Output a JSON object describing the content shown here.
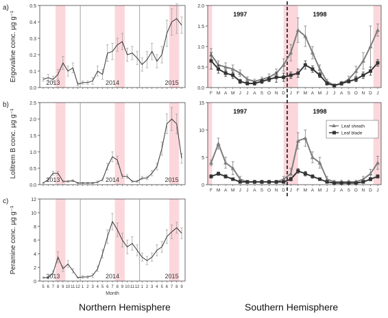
{
  "labels": {
    "north": "Northern Hemisphere",
    "south": "Southern Hemisphere",
    "month_axis": "Month"
  },
  "colors": {
    "band": "#fbd7dc",
    "line_dark": "#333333",
    "line_grey": "#7d7d7d",
    "error": "#9a9a9a"
  },
  "chart_data": [
    {
      "id": "a_north",
      "type": "line",
      "panel": "a)",
      "ylabel": "Ergovaline conc. µg g⁻¹",
      "ylim": [
        0,
        0.5
      ],
      "yticks": [
        "0.0",
        "0.1",
        "0.2",
        "0.3",
        "0.4",
        "0.5"
      ],
      "ytick_values": [
        0,
        0.1,
        0.2,
        0.3,
        0.4,
        0.5
      ],
      "x_labels": [
        "5",
        "6",
        "7",
        "8",
        "9",
        "10",
        "11",
        "12",
        "1",
        "2",
        "3",
        "4",
        "5",
        "6",
        "7",
        "8",
        "9",
        "10",
        "11",
        "12",
        "1",
        "2",
        "3",
        "4",
        "5",
        "6",
        "7",
        "8",
        "9"
      ],
      "years": [
        "2013",
        "2014",
        "2015"
      ],
      "values": [
        0.05,
        0.06,
        0.05,
        0.08,
        0.15,
        0.1,
        0.12,
        0.02,
        0.03,
        0.03,
        0.04,
        0.1,
        0.08,
        0.21,
        0.22,
        0.26,
        0.28,
        0.2,
        0.21,
        0.18,
        0.14,
        0.17,
        0.22,
        0.16,
        0.2,
        0.33,
        0.4,
        0.42,
        0.38
      ],
      "errors": [
        0.01,
        0.02,
        0.02,
        0.03,
        0.04,
        0.03,
        0.03,
        0.01,
        0.01,
        0.01,
        0.02,
        0.03,
        0.03,
        0.05,
        0.05,
        0.04,
        0.05,
        0.04,
        0.04,
        0.04,
        0.04,
        0.05,
        0.05,
        0.04,
        0.05,
        0.08,
        0.08,
        0.09,
        0.05
      ]
    },
    {
      "id": "b_north",
      "type": "line",
      "panel": "b)",
      "ylabel": "Lolitrem B conc. µg g⁻¹",
      "ylim": [
        0,
        2.5
      ],
      "yticks": [
        "0.0",
        "0.5",
        "1.0",
        "1.5",
        "2.0",
        "2.5"
      ],
      "ytick_values": [
        0,
        0.5,
        1.0,
        1.5,
        2.0,
        2.5
      ],
      "x_labels": [
        "5",
        "6",
        "7",
        "8",
        "9",
        "10",
        "11",
        "12",
        "1",
        "2",
        "3",
        "4",
        "5",
        "6",
        "7",
        "8",
        "9",
        "10",
        "11",
        "12",
        "1",
        "2",
        "3",
        "4",
        "5",
        "6",
        "7",
        "8",
        "9"
      ],
      "years": [
        "2013",
        "2014",
        "2015"
      ],
      "values": [
        0.05,
        0.15,
        0.35,
        0.35,
        0.1,
        0.1,
        0.12,
        0.05,
        0.05,
        0.05,
        0.05,
        0.08,
        0.15,
        0.55,
        0.85,
        0.75,
        0.25,
        0.25,
        0.1,
        0.1,
        0.2,
        0.2,
        0.35,
        0.55,
        1.1,
        1.85,
        2.0,
        1.85,
        0.8
      ],
      "errors": [
        0.02,
        0.03,
        0.06,
        0.06,
        0.03,
        0.03,
        0.03,
        0.02,
        0.02,
        0.02,
        0.02,
        0.03,
        0.04,
        0.1,
        0.15,
        0.12,
        0.06,
        0.06,
        0.03,
        0.03,
        0.05,
        0.05,
        0.08,
        0.1,
        0.2,
        0.3,
        0.35,
        0.3,
        0.15
      ]
    },
    {
      "id": "c_north",
      "type": "line",
      "panel": "c)",
      "ylabel": "Peramine conc. µg g⁻¹",
      "ylim": [
        0,
        12
      ],
      "yticks": [
        "0",
        "2",
        "4",
        "6",
        "8",
        "10",
        "12"
      ],
      "ytick_values": [
        0,
        2,
        4,
        6,
        8,
        10,
        12
      ],
      "x_labels": [
        "5",
        "6",
        "7",
        "8",
        "9",
        "10",
        "11",
        "12",
        "1",
        "2",
        "3",
        "4",
        "5",
        "6",
        "7",
        "8",
        "9",
        "10",
        "11",
        "12",
        "1",
        "2",
        "3",
        "4",
        "5",
        "6",
        "7",
        "8",
        "9"
      ],
      "years": [
        "2013",
        "2014",
        "2015"
      ],
      "values": [
        0.5,
        0.5,
        1.2,
        3.5,
        1.8,
        2.5,
        1.5,
        0.5,
        0.6,
        0.6,
        0.8,
        1.8,
        4.0,
        6.5,
        8.7,
        7.5,
        6.0,
        5.0,
        5.5,
        4.5,
        3.5,
        3.0,
        3.5,
        4.5,
        5.0,
        6.5,
        7.2,
        7.8,
        7.0
      ],
      "errors": [
        0.1,
        0.2,
        0.3,
        0.8,
        0.4,
        0.5,
        0.3,
        0.1,
        0.2,
        0.2,
        0.3,
        0.4,
        0.6,
        1.0,
        1.2,
        1.0,
        1.0,
        1.0,
        1.0,
        0.8,
        0.6,
        0.6,
        0.6,
        0.8,
        0.8,
        1.0,
        1.0,
        0.8,
        0.8
      ]
    },
    {
      "id": "a_south",
      "type": "line",
      "panel": "",
      "ylim": [
        0,
        2.0
      ],
      "yticks": [
        "0.0",
        "0.5",
        "1.0",
        "1.5",
        "2.0"
      ],
      "ytick_values": [
        0,
        0.5,
        1.0,
        1.5,
        2.0
      ],
      "x_labels": [
        "F",
        "M",
        "A",
        "M",
        "J",
        "J",
        "A",
        "S",
        "O",
        "N",
        "D",
        "J",
        "F",
        "M",
        "A",
        "M",
        "J",
        "J",
        "A",
        "S",
        "O",
        "N",
        "D",
        "J"
      ],
      "year_left": "1997",
      "year_right": "1998",
      "series": [
        {
          "values": [
            0.8,
            0.55,
            0.5,
            0.45,
            0.35,
            0.2,
            0.15,
            0.2,
            0.25,
            0.35,
            0.55,
            0.85,
            1.4,
            1.25,
            0.85,
            0.45,
            0.15,
            0.05,
            0.1,
            0.2,
            0.4,
            0.65,
            1.0,
            1.4
          ],
          "errors": [
            0.15,
            0.1,
            0.1,
            0.1,
            0.08,
            0.06,
            0.05,
            0.05,
            0.08,
            0.1,
            0.15,
            0.2,
            0.3,
            0.25,
            0.15,
            0.1,
            0.05,
            0.03,
            0.05,
            0.08,
            0.12,
            0.2,
            0.5,
            0.15
          ]
        },
        {
          "values": [
            0.65,
            0.45,
            0.35,
            0.3,
            0.15,
            0.1,
            0.1,
            0.15,
            0.2,
            0.25,
            0.25,
            0.3,
            0.35,
            0.55,
            0.45,
            0.3,
            0.1,
            0.05,
            0.1,
            0.15,
            0.2,
            0.3,
            0.4,
            0.6
          ],
          "errors": [
            0.2,
            0.1,
            0.08,
            0.08,
            0.05,
            0.04,
            0.04,
            0.05,
            0.06,
            0.12,
            0.1,
            0.08,
            0.1,
            0.1,
            0.08,
            0.06,
            0.04,
            0.03,
            0.03,
            0.04,
            0.06,
            0.08,
            0.1,
            0.08
          ]
        }
      ]
    },
    {
      "id": "b_south",
      "type": "line",
      "panel": "",
      "ylim": [
        0,
        15
      ],
      "yticks": [
        "0",
        "5",
        "10",
        "15"
      ],
      "ytick_values": [
        0,
        5,
        10,
        15
      ],
      "x_labels": [
        "F",
        "M",
        "A",
        "M",
        "J",
        "J",
        "A",
        "S",
        "O",
        "N",
        "D",
        "J",
        "F",
        "M",
        "A",
        "M",
        "J",
        "J",
        "A",
        "S",
        "O",
        "N",
        "D",
        "J"
      ],
      "year_left": "1997",
      "year_right": "1998",
      "legend": [
        "Leaf sheath",
        "Leaf blade"
      ],
      "series": [
        {
          "values": [
            4.0,
            7.5,
            4.0,
            3.0,
            1.0,
            0.5,
            0.5,
            0.5,
            0.5,
            0.5,
            1.0,
            2.0,
            8.0,
            8.5,
            5.0,
            4.0,
            1.0,
            0.5,
            0.5,
            0.5,
            0.5,
            1.0,
            2.0,
            4.0
          ],
          "errors": [
            0.5,
            1.0,
            1.0,
            1.2,
            0.5,
            0.3,
            0.3,
            0.3,
            0.3,
            0.3,
            0.5,
            1.0,
            1.5,
            1.5,
            1.0,
            1.0,
            0.5,
            0.3,
            0.3,
            0.3,
            0.3,
            0.5,
            0.8,
            1.2
          ]
        },
        {
          "values": [
            1.5,
            2.0,
            1.5,
            1.0,
            0.5,
            0.5,
            0.5,
            0.5,
            0.5,
            0.5,
            0.5,
            1.0,
            2.5,
            2.0,
            1.5,
            1.0,
            0.5,
            0.3,
            0.3,
            0.3,
            0.3,
            0.5,
            1.0,
            1.5
          ],
          "errors": [
            0.3,
            0.3,
            0.3,
            0.2,
            0.2,
            0.2,
            0.2,
            0.2,
            0.2,
            0.2,
            0.2,
            0.3,
            0.4,
            0.4,
            0.3,
            0.2,
            0.2,
            0.1,
            0.1,
            0.1,
            0.1,
            0.2,
            0.3,
            0.3
          ]
        }
      ]
    }
  ]
}
